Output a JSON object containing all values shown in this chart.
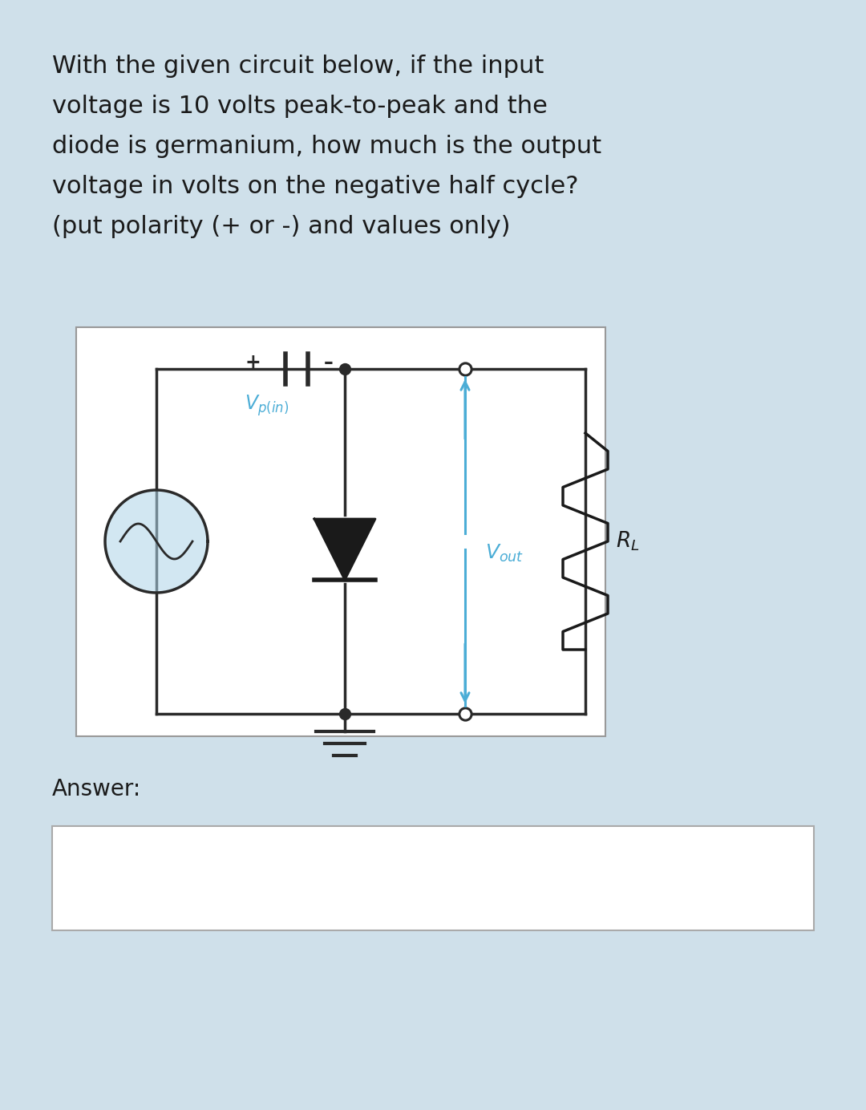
{
  "bg_color": "#cfe0ea",
  "question_text_lines": [
    "With the given circuit below, if the input",
    "voltage is 10 volts peak-to-peak and the",
    "diode is germanium, how much is the output",
    "voltage in volts on the negative half cycle?",
    "(put polarity (+ or -) and values only)"
  ],
  "answer_label": "Answer:",
  "circuit_bg": "#ffffff",
  "wire_color": "#2a2a2a",
  "diode_color": "#1a1a1a",
  "blue_color": "#4badd6",
  "resistor_color": "#2a2a2a",
  "plus_sign": "+",
  "minus_sign": "–",
  "text_color": "#1a1a1a",
  "q_fontsize": 22,
  "ans_fontsize": 20
}
